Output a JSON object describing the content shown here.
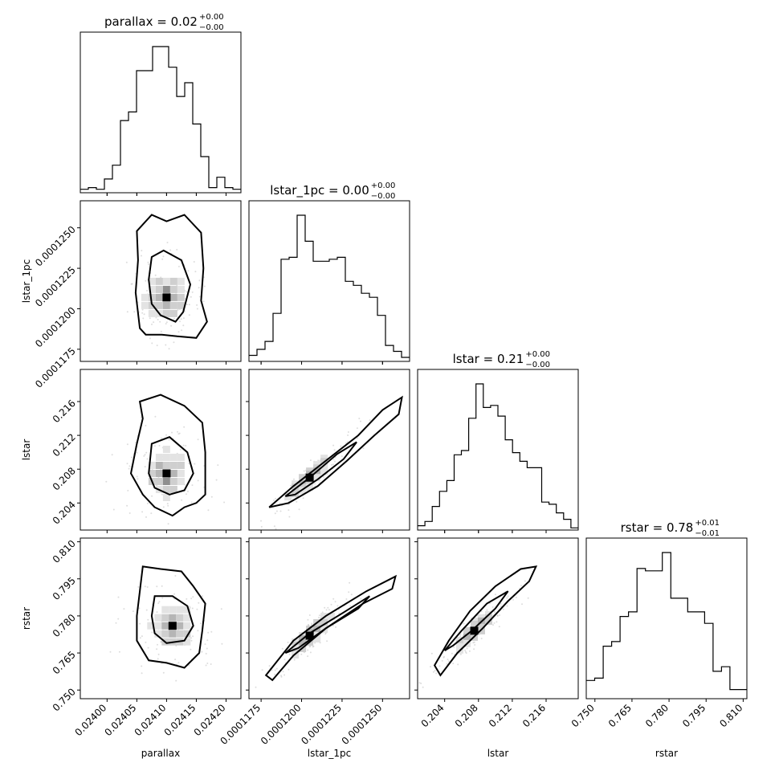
{
  "chart_data": {
    "type": "corner",
    "params": [
      "parallax",
      "lstar_1pc",
      "lstar",
      "rstar"
    ],
    "titles": [
      {
        "label": "parallax = 0.02",
        "sup": "+0.00",
        "sub": "−0.00"
      },
      {
        "label": "lstar_1pc = 0.00",
        "sup": "+0.00",
        "sub": "−0.00"
      },
      {
        "label": "lstar = 0.21",
        "sup": "+0.00",
        "sub": "−0.00"
      },
      {
        "label": "rstar = 0.78",
        "sup": "+0.01",
        "sub": "−0.01"
      }
    ],
    "ranges": [
      [
        0.023955,
        0.024225
      ],
      [
        0.00011675,
        0.00012667
      ],
      [
        0.2008,
        0.2198
      ],
      [
        0.7465,
        0.8115
      ]
    ],
    "ticks": [
      [
        0.024,
        0.02405,
        0.0241,
        0.02415,
        0.0242
      ],
      [
        0.0001175,
        0.00012,
        0.0001225,
        0.000125
      ],
      [
        0.204,
        0.208,
        0.212,
        0.216
      ],
      [
        0.75,
        0.765,
        0.78,
        0.795,
        0.81
      ]
    ],
    "tick_labels": [
      [
        "0.02400",
        "0.02405",
        "0.02410",
        "0.02415",
        "0.02420"
      ],
      [
        "0.0001175",
        "0.0001200",
        "0.0001225",
        "0.0001250"
      ],
      [
        "0.204",
        "0.208",
        "0.212",
        "0.216"
      ],
      [
        "0.750",
        "0.765",
        "0.780",
        "0.795",
        "0.810"
      ]
    ],
    "histograms": [
      [
        2,
        3,
        2,
        8,
        16,
        42,
        47,
        71,
        71,
        85,
        85,
        73,
        56,
        64,
        40,
        21,
        3,
        9,
        3,
        2
      ],
      [
        3,
        6,
        10,
        24,
        51,
        52,
        73,
        60,
        50,
        50,
        51,
        52,
        40,
        38,
        34,
        32,
        23,
        8,
        5,
        2
      ],
      [
        2,
        4,
        11,
        18,
        23,
        35,
        37,
        52,
        68,
        57,
        58,
        53,
        42,
        36,
        32,
        29,
        29,
        13,
        12,
        8,
        5,
        1
      ],
      [
        8,
        9,
        23,
        25,
        36,
        38,
        57,
        56,
        56,
        64,
        44,
        44,
        38,
        38,
        33,
        12,
        14,
        4,
        4
      ]
    ],
    "contours": {
      "1-0": [
        [
          [
            0.02405,
            0.0001248
          ],
          [
            0.024075,
            0.0001258
          ],
          [
            0.0241,
            0.0001254
          ],
          [
            0.02413,
            0.0001258
          ],
          [
            0.024158,
            0.0001247
          ],
          [
            0.024162,
            0.0001225
          ],
          [
            0.024158,
            0.0001205
          ],
          [
            0.024168,
            0.0001192
          ],
          [
            0.02415,
            0.0001182
          ],
          [
            0.024118,
            0.0001183
          ],
          [
            0.024092,
            0.0001184
          ],
          [
            0.024065,
            0.0001184
          ],
          [
            0.024055,
            0.0001188
          ],
          [
            0.024048,
            0.000121
          ],
          [
            0.024052,
            0.000123
          ]
        ],
        [
          [
            0.024075,
            0.0001232
          ],
          [
            0.024095,
            0.0001236
          ],
          [
            0.024125,
            0.000123
          ],
          [
            0.02414,
            0.0001215
          ],
          [
            0.024128,
            0.0001198
          ],
          [
            0.024115,
            0.0001192
          ],
          [
            0.02409,
            0.0001196
          ],
          [
            0.024075,
            0.0001203
          ],
          [
            0.02407,
            0.0001218
          ]
        ]
      ],
      "2-0": [
        [
          [
            0.024055,
            0.216
          ],
          [
            0.02409,
            0.2168
          ],
          [
            0.02413,
            0.2155
          ],
          [
            0.02416,
            0.2135
          ],
          [
            0.024165,
            0.21
          ],
          [
            0.024165,
            0.205
          ],
          [
            0.02415,
            0.204
          ],
          [
            0.02413,
            0.2035
          ],
          [
            0.02411,
            0.2025
          ],
          [
            0.02408,
            0.2035
          ],
          [
            0.02406,
            0.205
          ],
          [
            0.02404,
            0.2075
          ],
          [
            0.02405,
            0.211
          ],
          [
            0.02406,
            0.214
          ]
        ],
        [
          [
            0.024075,
            0.211
          ],
          [
            0.024105,
            0.2118
          ],
          [
            0.024135,
            0.21
          ],
          [
            0.024145,
            0.2075
          ],
          [
            0.02413,
            0.2055
          ],
          [
            0.024105,
            0.205
          ],
          [
            0.02408,
            0.2058
          ],
          [
            0.02407,
            0.2075
          ]
        ]
      ],
      "3-0": [
        [
          [
            0.02406,
            0.8
          ],
          [
            0.02409,
            0.799
          ],
          [
            0.024125,
            0.798
          ],
          [
            0.024145,
            0.792
          ],
          [
            0.024165,
            0.785
          ],
          [
            0.02416,
            0.774
          ],
          [
            0.024155,
            0.765
          ],
          [
            0.02413,
            0.759
          ],
          [
            0.0241,
            0.761
          ],
          [
            0.02407,
            0.762
          ],
          [
            0.02405,
            0.77
          ],
          [
            0.02405,
            0.78
          ],
          [
            0.024055,
            0.79
          ]
        ],
        [
          [
            0.02408,
            0.788
          ],
          [
            0.02411,
            0.788
          ],
          [
            0.024135,
            0.784
          ],
          [
            0.024145,
            0.776
          ],
          [
            0.02413,
            0.77
          ],
          [
            0.0241,
            0.769
          ],
          [
            0.02408,
            0.773
          ],
          [
            0.024075,
            0.78
          ]
        ]
      ],
      "2-1": [
        [
          [
            0.000118,
            0.2035
          ],
          [
            0.0001195,
            0.206
          ],
          [
            0.0001215,
            0.209
          ],
          [
            0.0001235,
            0.212
          ],
          [
            0.000125,
            0.215
          ],
          [
            0.0001262,
            0.2165
          ],
          [
            0.000126,
            0.2145
          ],
          [
            0.0001245,
            0.212
          ],
          [
            0.0001228,
            0.209
          ],
          [
            0.000121,
            0.206
          ],
          [
            0.0001192,
            0.204
          ]
        ],
        [
          [
            0.000119,
            0.2048
          ],
          [
            0.0001205,
            0.207
          ],
          [
            0.0001222,
            0.2098
          ],
          [
            0.0001234,
            0.2112
          ],
          [
            0.0001226,
            0.2092
          ],
          [
            0.000121,
            0.2068
          ],
          [
            0.0001196,
            0.205
          ]
        ]
      ],
      "3-1": [
        [
          [
            0.0001178,
            0.756
          ],
          [
            0.0001195,
            0.77
          ],
          [
            0.0001215,
            0.78
          ],
          [
            0.000124,
            0.79
          ],
          [
            0.0001258,
            0.796
          ],
          [
            0.0001256,
            0.791
          ],
          [
            0.0001238,
            0.785
          ],
          [
            0.0001215,
            0.775
          ],
          [
            0.0001195,
            0.764
          ],
          [
            0.0001182,
            0.754
          ]
        ],
        [
          [
            0.000119,
            0.765
          ],
          [
            0.0001205,
            0.773
          ],
          [
            0.0001225,
            0.781
          ],
          [
            0.0001242,
            0.788
          ],
          [
            0.0001235,
            0.783
          ],
          [
            0.0001215,
            0.775
          ],
          [
            0.0001198,
            0.767
          ]
        ]
      ],
      "3-2": [
        [
          [
            0.2028,
            0.76
          ],
          [
            0.2045,
            0.77
          ],
          [
            0.207,
            0.782
          ],
          [
            0.21,
            0.792
          ],
          [
            0.213,
            0.799
          ],
          [
            0.2148,
            0.8
          ],
          [
            0.214,
            0.794
          ],
          [
            0.2115,
            0.786
          ],
          [
            0.2085,
            0.775
          ],
          [
            0.2055,
            0.765
          ],
          [
            0.2035,
            0.756
          ]
        ],
        [
          [
            0.204,
            0.766
          ],
          [
            0.206,
            0.774
          ],
          [
            0.209,
            0.785
          ],
          [
            0.2115,
            0.79
          ],
          [
            0.21,
            0.783
          ],
          [
            0.2072,
            0.774
          ],
          [
            0.205,
            0.768
          ]
        ]
      ]
    }
  }
}
